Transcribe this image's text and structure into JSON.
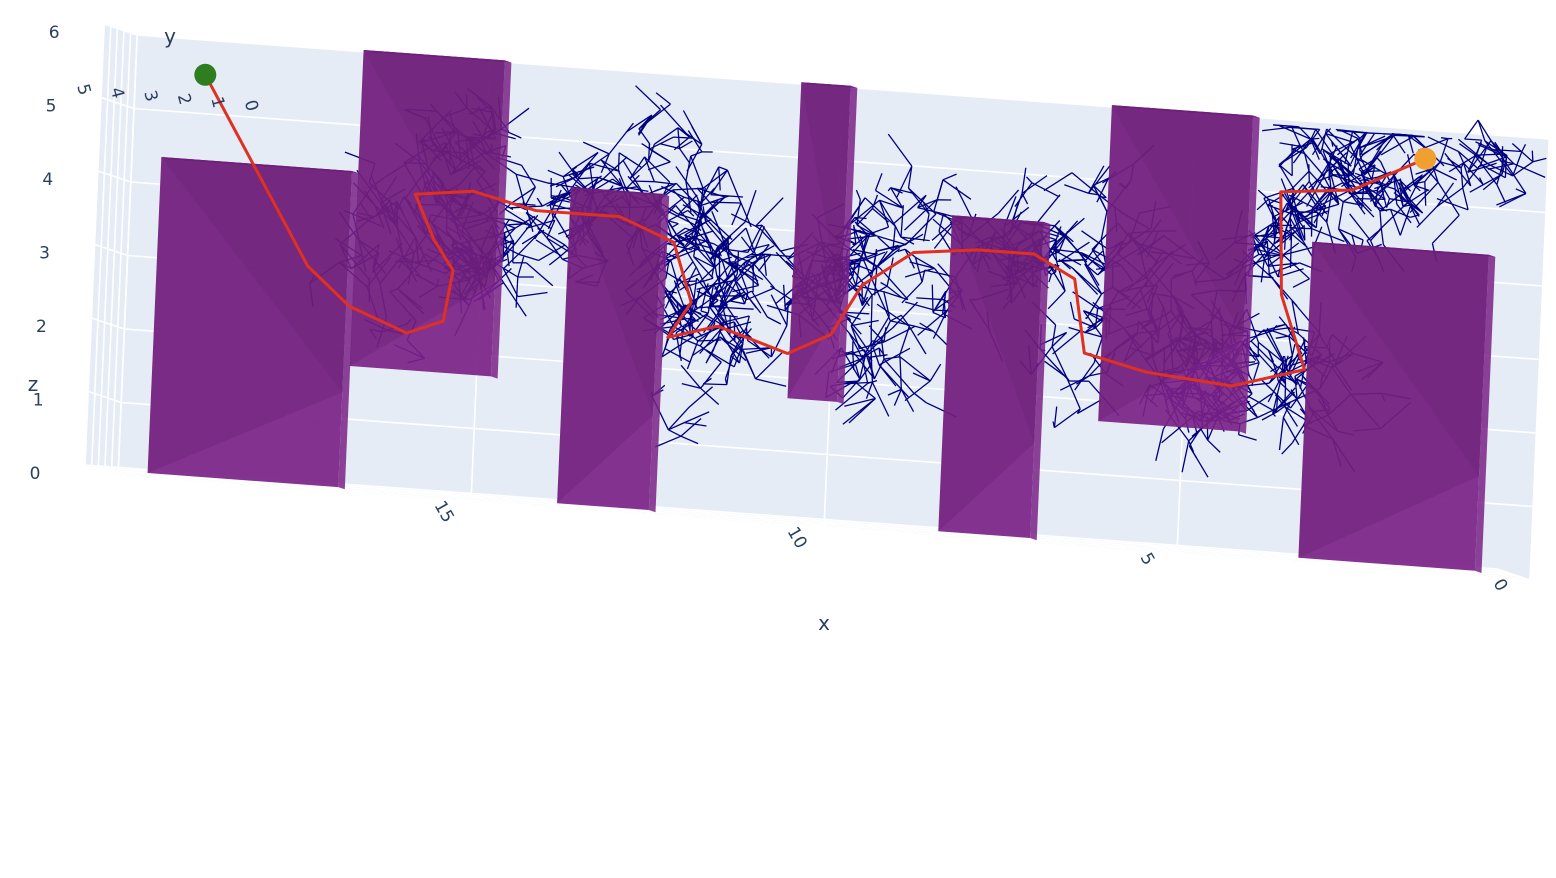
{
  "chart_data": {
    "type": "scatter3d",
    "title": "",
    "axes": {
      "x": {
        "label": "x",
        "range": [
          0,
          20
        ],
        "ticks": [
          "0",
          "5",
          "10",
          "15"
        ],
        "reversed": true
      },
      "y": {
        "label": "y",
        "range": [
          0,
          5
        ],
        "ticks": [
          "0",
          "1",
          "2",
          "3",
          "4",
          "5"
        ]
      },
      "z": {
        "label": "z",
        "range": [
          0,
          6
        ],
        "ticks": [
          "0",
          "1",
          "2",
          "3",
          "4",
          "5",
          "6"
        ]
      }
    },
    "grid": true,
    "colors": {
      "scene_background": "#e5ecf6",
      "grid": "#ffffff",
      "obstacle": "#7b2287",
      "tree": "#00007f",
      "path": "#e03020",
      "start": "#2e7d1e",
      "goal": "#f0a030"
    },
    "start_point": {
      "x": 18.9,
      "y": 1.2,
      "z": 5.5
    },
    "goal_point": {
      "x": 1.7,
      "y": 0.4,
      "z": 5.6
    },
    "obstacles": [
      {
        "x": [
          16.6,
          19.3
        ],
        "y": [
          2.0,
          3.0
        ],
        "z": [
          0,
          4.3
        ]
      },
      {
        "x": [
          14.7,
          16.7
        ],
        "y": [
          0.0,
          1.0
        ],
        "z": [
          1.7,
          6.0
        ]
      },
      {
        "x": [
          12.2,
          13.5
        ],
        "y": [
          2.0,
          3.0
        ],
        "z": [
          0,
          4.3
        ]
      },
      {
        "x": [
          9.8,
          10.5
        ],
        "y": [
          0.0,
          1.0
        ],
        "z": [
          1.7,
          6.0
        ]
      },
      {
        "x": [
          6.8,
          8.1
        ],
        "y": [
          2.0,
          3.0
        ],
        "z": [
          0,
          4.3
        ]
      },
      {
        "x": [
          4.1,
          6.1
        ],
        "y": [
          0.0,
          1.0
        ],
        "z": [
          1.7,
          6.0
        ]
      },
      {
        "x": [
          0.5,
          3.0
        ],
        "y": [
          2.0,
          3.0
        ],
        "z": [
          0,
          4.3
        ]
      }
    ],
    "path": [
      {
        "x": 18.9,
        "y": 1.2,
        "z": 5.5
      },
      {
        "x": 17.3,
        "y": 1.6,
        "z": 3.0
      },
      {
        "x": 16.7,
        "y": 1.5,
        "z": 2.5
      },
      {
        "x": 15.9,
        "y": 1.2,
        "z": 2.2
      },
      {
        "x": 15.4,
        "y": 1.1,
        "z": 2.4
      },
      {
        "x": 15.3,
        "y": 1.0,
        "z": 3.1
      },
      {
        "x": 15.6,
        "y": 0.9,
        "z": 3.5
      },
      {
        "x": 15.9,
        "y": 0.8,
        "z": 4.1
      },
      {
        "x": 15.1,
        "y": 0.7,
        "z": 4.2
      },
      {
        "x": 14.2,
        "y": 0.7,
        "z": 4.0
      },
      {
        "x": 13.0,
        "y": 0.8,
        "z": 4.0
      },
      {
        "x": 12.2,
        "y": 1.0,
        "z": 3.7
      },
      {
        "x": 11.9,
        "y": 1.2,
        "z": 2.9
      },
      {
        "x": 12.2,
        "y": 1.3,
        "z": 2.4
      },
      {
        "x": 11.5,
        "y": 1.3,
        "z": 2.6
      },
      {
        "x": 10.5,
        "y": 1.3,
        "z": 2.3
      },
      {
        "x": 9.9,
        "y": 1.3,
        "z": 2.6
      },
      {
        "x": 9.5,
        "y": 1.2,
        "z": 3.3
      },
      {
        "x": 8.8,
        "y": 1.1,
        "z": 3.8
      },
      {
        "x": 7.9,
        "y": 1.1,
        "z": 3.9
      },
      {
        "x": 7.1,
        "y": 1.1,
        "z": 3.9
      },
      {
        "x": 6.5,
        "y": 1.2,
        "z": 3.6
      },
      {
        "x": 6.3,
        "y": 1.4,
        "z": 2.6
      },
      {
        "x": 5.4,
        "y": 1.5,
        "z": 2.4
      },
      {
        "x": 4.2,
        "y": 1.4,
        "z": 2.3
      },
      {
        "x": 3.2,
        "y": 1.2,
        "z": 2.6
      },
      {
        "x": 3.6,
        "y": 0.9,
        "z": 3.6
      },
      {
        "x": 3.7,
        "y": 0.6,
        "z": 5.0
      },
      {
        "x": 2.7,
        "y": 0.5,
        "z": 5.1
      },
      {
        "x": 2.1,
        "y": 0.4,
        "z": 5.4
      },
      {
        "x": 1.7,
        "y": 0.4,
        "z": 5.6
      }
    ],
    "tree_seed": 7
  }
}
